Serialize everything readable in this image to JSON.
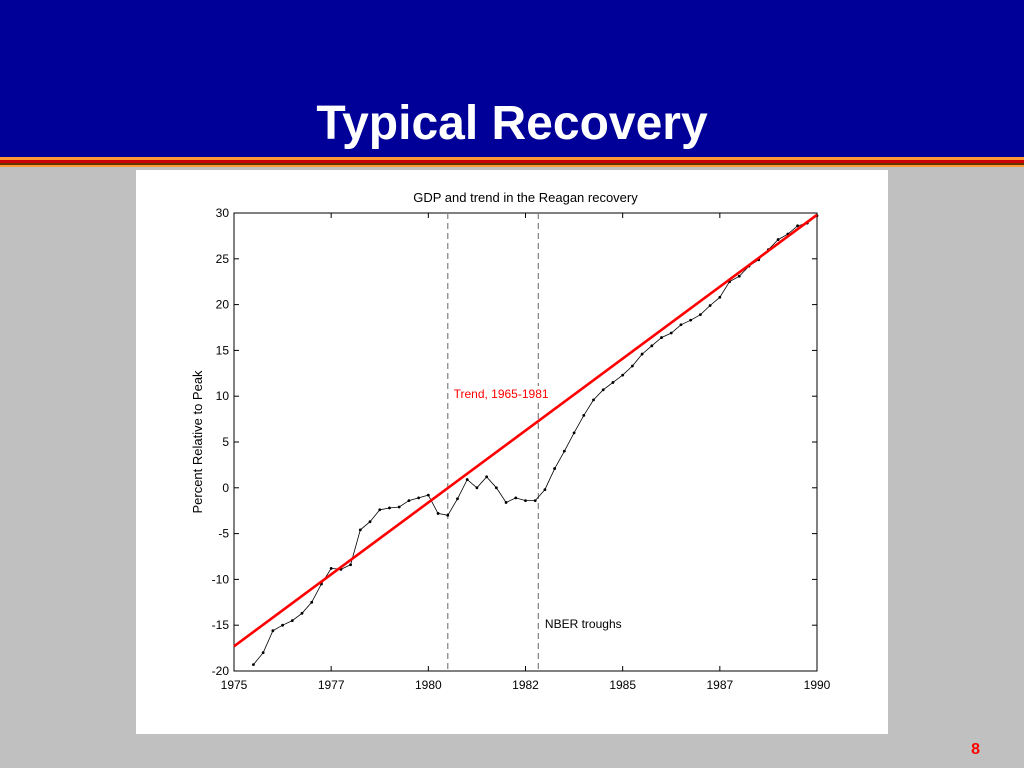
{
  "slide": {
    "title": "Typical Recovery",
    "page_number": "8"
  },
  "colors": {
    "header_bg": "#000099",
    "stripe_colors": [
      "#ff9933",
      "#cc0000",
      "#663300",
      "#ff9933"
    ],
    "slide_bg": "#c0c0c0",
    "trend_color": "#ff0000",
    "gdp_color": "#000000",
    "trough_line_color": "#808080",
    "page_number_color": "#ff0000"
  },
  "chart_data": {
    "type": "line",
    "title": "GDP and trend in the Reagan recovery",
    "xlabel": "",
    "ylabel": "Percent Relative to Peak",
    "xlim": [
      1975,
      1990
    ],
    "ylim": [
      -20,
      30
    ],
    "xticks": [
      1975,
      1977.5,
      1980,
      1982.5,
      1985,
      1987.5,
      1990
    ],
    "xtick_labels": [
      "1975",
      "1977",
      "1980",
      "1982",
      "1985",
      "1987",
      "1990"
    ],
    "yticks": [
      -20,
      -15,
      -10,
      -5,
      0,
      5,
      10,
      15,
      20,
      25,
      30
    ],
    "ytick_labels": [
      "-20",
      "-15",
      "-10",
      "-5",
      "0",
      "5",
      "10",
      "15",
      "20",
      "25",
      "30"
    ],
    "grid": false,
    "series": [
      {
        "name": "",
        "style": "line-with-dots",
        "points": [
          [
            1975.5,
            -19.3
          ],
          [
            1975.75,
            -18.0
          ],
          [
            1976.0,
            -15.6
          ],
          [
            1976.25,
            -15.0
          ],
          [
            1976.5,
            -14.5
          ],
          [
            1976.75,
            -13.7
          ],
          [
            1977.0,
            -12.5
          ],
          [
            1977.25,
            -10.5
          ],
          [
            1977.5,
            -8.8
          ],
          [
            1977.75,
            -8.9
          ],
          [
            1978.0,
            -8.4
          ],
          [
            1978.25,
            -4.6
          ],
          [
            1978.5,
            -3.7
          ],
          [
            1978.75,
            -2.4
          ],
          [
            1979.0,
            -2.2
          ],
          [
            1979.25,
            -2.1
          ],
          [
            1979.5,
            -1.4
          ],
          [
            1979.75,
            -1.1
          ],
          [
            1980.0,
            -0.8
          ],
          [
            1980.25,
            -2.8
          ],
          [
            1980.5,
            -3.0
          ],
          [
            1980.75,
            -1.2
          ],
          [
            1981.0,
            0.9
          ],
          [
            1981.25,
            0.0
          ],
          [
            1981.5,
            1.2
          ],
          [
            1981.75,
            0.0
          ],
          [
            1982.0,
            -1.6
          ],
          [
            1982.25,
            -1.1
          ],
          [
            1982.5,
            -1.4
          ],
          [
            1982.75,
            -1.4
          ],
          [
            1983.0,
            -0.2
          ],
          [
            1983.25,
            2.1
          ],
          [
            1983.5,
            4.0
          ],
          [
            1983.75,
            6.0
          ],
          [
            1984.0,
            7.9
          ],
          [
            1984.25,
            9.6
          ],
          [
            1984.5,
            10.7
          ],
          [
            1984.75,
            11.5
          ],
          [
            1985.0,
            12.3
          ],
          [
            1985.25,
            13.3
          ],
          [
            1985.5,
            14.6
          ],
          [
            1985.75,
            15.5
          ],
          [
            1986.0,
            16.4
          ],
          [
            1986.25,
            16.9
          ],
          [
            1986.5,
            17.8
          ],
          [
            1986.75,
            18.3
          ],
          [
            1987.0,
            18.9
          ],
          [
            1987.25,
            19.9
          ],
          [
            1987.5,
            20.8
          ],
          [
            1987.75,
            22.5
          ],
          [
            1988.0,
            23.1
          ],
          [
            1988.25,
            24.2
          ],
          [
            1988.5,
            24.9
          ],
          [
            1988.75,
            26.0
          ],
          [
            1989.0,
            27.1
          ],
          [
            1989.25,
            27.7
          ],
          [
            1989.5,
            28.6
          ],
          [
            1989.75,
            28.9
          ],
          [
            1990.0,
            29.7
          ]
        ]
      },
      {
        "name": "Trend, 1965-1981",
        "style": "line",
        "points": [
          [
            1975.0,
            -17.3
          ],
          [
            1990.0,
            29.8
          ]
        ]
      }
    ],
    "vertical_lines": [
      {
        "x": 1980.5,
        "style": "dashed"
      },
      {
        "x": 1982.83,
        "style": "dashed"
      }
    ],
    "annotations": [
      {
        "text": "Trend, 1965-1981",
        "x": 1980.65,
        "y": 9.8,
        "color": "#ff0000"
      },
      {
        "text": "NBER troughs",
        "x": 1983.0,
        "y": -15.3,
        "color": "#000000"
      }
    ]
  }
}
